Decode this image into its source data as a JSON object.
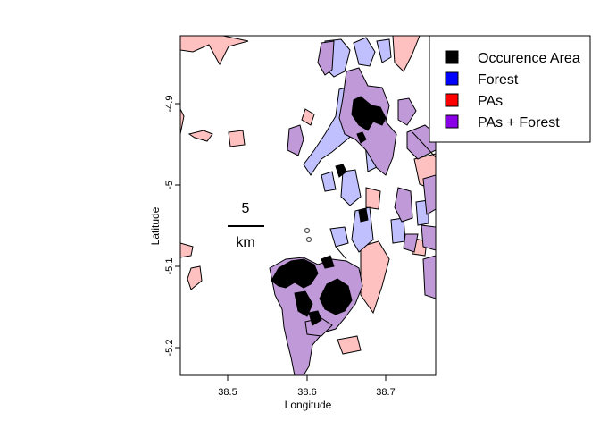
{
  "axes": {
    "xlabel": "Longitude",
    "ylabel": "Latitude",
    "x_ticks": [
      "38.5",
      "38.6",
      "38.7"
    ],
    "y_ticks": [
      "-4.9",
      "-5",
      "-5.1",
      "-5.2"
    ]
  },
  "legend": {
    "position": "top-right",
    "entries": [
      {
        "label": "Occurence Area",
        "color": "#000000"
      },
      {
        "label": "Forest",
        "color": "#0000ff"
      },
      {
        "label": "PAs",
        "color": "#ff0000"
      },
      {
        "label": "PAs + Forest",
        "color": "#8a00e6"
      }
    ]
  },
  "scale_bar": {
    "value": "5",
    "unit": "km"
  },
  "colors": {
    "pa_fill": "#ffc0c0",
    "forest_fill": "#c0c0ff",
    "overlap_fill": "#c09ad8",
    "occurrence": "#000000"
  }
}
